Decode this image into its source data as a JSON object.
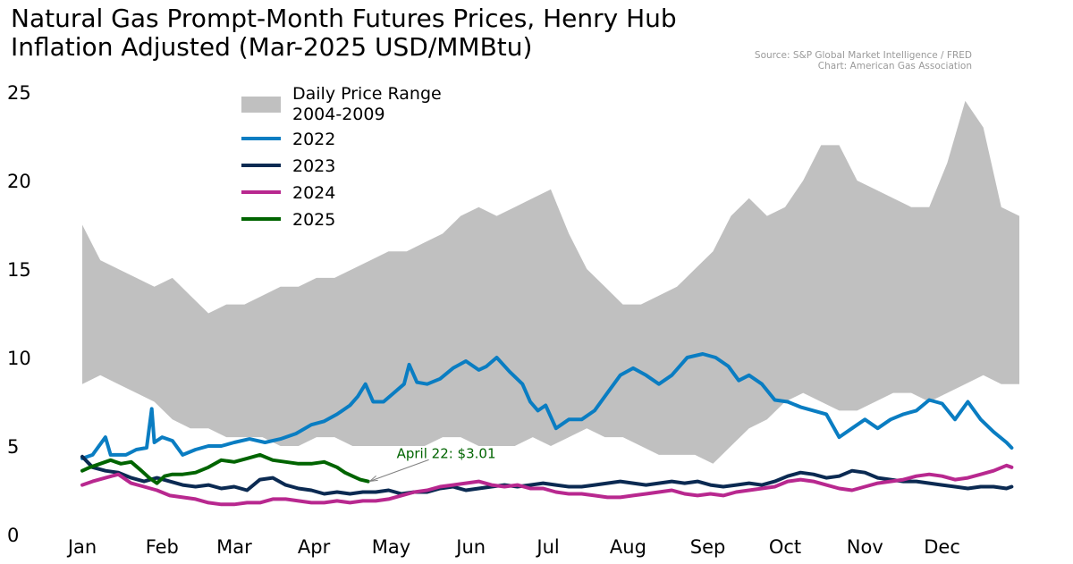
{
  "chart_data": {
    "type": "line",
    "title": [
      "Natural Gas Prompt-Month Futures Prices, Henry Hub",
      "Inflation Adjusted (Mar-2025 USD/MMBtu)"
    ],
    "source": [
      "Source: S&P Global Market Intelligence / FRED",
      "Chart: American Gas Association"
    ],
    "xlabel": "",
    "ylabel": "",
    "x_unit": "day of year",
    "xlim": [
      1,
      365
    ],
    "ylim": [
      0,
      25
    ],
    "y_ticks": [
      "0",
      "5",
      "10",
      "15",
      "20",
      "25"
    ],
    "month_ticks": [
      {
        "label": "Jan",
        "day": 1
      },
      {
        "label": "Feb",
        "day": 32
      },
      {
        "label": "Mar",
        "day": 60
      },
      {
        "label": "Apr",
        "day": 91
      },
      {
        "label": "May",
        "day": 121
      },
      {
        "label": "Jun",
        "day": 152
      },
      {
        "label": "Jul",
        "day": 182
      },
      {
        "label": "Aug",
        "day": 213
      },
      {
        "label": "Sep",
        "day": 244
      },
      {
        "label": "Oct",
        "day": 274
      },
      {
        "label": "Nov",
        "day": 305
      },
      {
        "label": "Dec",
        "day": 335
      }
    ],
    "range_band": {
      "name": "Daily Price Range 2004-2009",
      "legend_lines": [
        "Daily Price Range",
        "2004-2009"
      ],
      "color": "#c0c0c0",
      "x": [
        1,
        8,
        15,
        22,
        29,
        36,
        43,
        50,
        57,
        64,
        71,
        78,
        85,
        92,
        99,
        106,
        113,
        120,
        127,
        134,
        141,
        148,
        155,
        162,
        169,
        176,
        183,
        190,
        197,
        204,
        211,
        218,
        225,
        232,
        239,
        246,
        253,
        260,
        267,
        274,
        281,
        288,
        295,
        302,
        309,
        316,
        323,
        330,
        337,
        344,
        351,
        358,
        365
      ],
      "high": [
        17.5,
        15.5,
        15.0,
        14.5,
        14.0,
        14.5,
        13.5,
        12.5,
        13.0,
        13.0,
        13.5,
        14.0,
        14.0,
        14.5,
        14.5,
        15.0,
        15.5,
        16.0,
        16.0,
        16.5,
        17.0,
        18.0,
        18.5,
        18.0,
        18.5,
        19.0,
        19.5,
        17.0,
        15.0,
        14.0,
        13.0,
        13.0,
        13.5,
        14.0,
        15.0,
        16.0,
        18.0,
        19.0,
        18.0,
        18.5,
        20.0,
        22.0,
        22.0,
        20.0,
        19.5,
        19.0,
        18.5,
        18.5,
        21.0,
        24.5,
        23.0,
        18.5,
        18.0
      ],
      "low": [
        8.5,
        9.0,
        8.5,
        8.0,
        7.5,
        6.5,
        6.0,
        6.0,
        5.5,
        5.5,
        5.5,
        5.0,
        5.0,
        5.5,
        5.5,
        5.0,
        5.0,
        5.0,
        5.0,
        5.0,
        5.5,
        5.5,
        5.0,
        5.0,
        5.0,
        5.5,
        5.0,
        5.5,
        6.0,
        5.5,
        5.5,
        5.0,
        4.5,
        4.5,
        4.5,
        4.0,
        5.0,
        6.0,
        6.5,
        7.5,
        8.0,
        7.5,
        7.0,
        7.0,
        7.5,
        8.0,
        8.0,
        7.5,
        8.0,
        8.5,
        9.0,
        8.5,
        8.5
      ]
    },
    "series": [
      {
        "name": "2022",
        "color": "#0a7dc2",
        "x": [
          1,
          5,
          10,
          12,
          15,
          18,
          22,
          26,
          28,
          29,
          32,
          36,
          40,
          45,
          50,
          55,
          60,
          66,
          72,
          78,
          84,
          90,
          95,
          100,
          105,
          108,
          111,
          114,
          118,
          122,
          126,
          128,
          131,
          135,
          140,
          145,
          150,
          155,
          158,
          162,
          167,
          172,
          175,
          178,
          181,
          185,
          190,
          195,
          200,
          205,
          210,
          215,
          220,
          225,
          230,
          236,
          242,
          247,
          252,
          256,
          260,
          265,
          270,
          275,
          280,
          285,
          290,
          295,
          300,
          305,
          310,
          315,
          320,
          325,
          330,
          335,
          340,
          345,
          350,
          355,
          360,
          362
        ],
        "y": [
          4.3,
          4.5,
          5.5,
          4.5,
          4.5,
          4.5,
          4.8,
          4.9,
          7.1,
          5.2,
          5.5,
          5.3,
          4.5,
          4.8,
          5.0,
          5.0,
          5.2,
          5.4,
          5.2,
          5.4,
          5.7,
          6.2,
          6.4,
          6.8,
          7.3,
          7.8,
          8.5,
          7.5,
          7.5,
          8.0,
          8.5,
          9.6,
          8.6,
          8.5,
          8.8,
          9.4,
          9.8,
          9.3,
          9.5,
          10.0,
          9.2,
          8.5,
          7.5,
          7.0,
          7.3,
          6.0,
          6.5,
          6.5,
          7.0,
          8.0,
          9.0,
          9.4,
          9.0,
          8.5,
          9.0,
          10.0,
          10.2,
          10.0,
          9.5,
          8.7,
          9.0,
          8.5,
          7.6,
          7.5,
          7.2,
          7.0,
          6.8,
          5.5,
          6.0,
          6.5,
          6.0,
          6.5,
          6.8,
          7.0,
          7.6,
          7.4,
          6.5,
          7.5,
          6.5,
          5.8,
          5.2,
          4.9
        ]
      },
      {
        "name": "2023",
        "color": "#0b2a52",
        "x": [
          1,
          5,
          10,
          15,
          20,
          25,
          30,
          35,
          40,
          45,
          50,
          55,
          60,
          65,
          70,
          75,
          80,
          85,
          90,
          95,
          100,
          105,
          110,
          115,
          120,
          125,
          130,
          135,
          140,
          145,
          150,
          155,
          160,
          165,
          170,
          175,
          180,
          185,
          190,
          195,
          200,
          205,
          210,
          215,
          220,
          225,
          230,
          235,
          240,
          245,
          250,
          255,
          260,
          265,
          270,
          275,
          280,
          285,
          290,
          295,
          300,
          305,
          310,
          315,
          320,
          325,
          330,
          335,
          340,
          345,
          350,
          355,
          360,
          362
        ],
        "y": [
          4.4,
          3.8,
          3.6,
          3.5,
          3.2,
          3.0,
          3.2,
          3.0,
          2.8,
          2.7,
          2.8,
          2.6,
          2.7,
          2.5,
          3.1,
          3.2,
          2.8,
          2.6,
          2.5,
          2.3,
          2.4,
          2.3,
          2.4,
          2.4,
          2.5,
          2.3,
          2.4,
          2.4,
          2.6,
          2.7,
          2.5,
          2.6,
          2.7,
          2.8,
          2.7,
          2.8,
          2.9,
          2.8,
          2.7,
          2.7,
          2.8,
          2.9,
          3.0,
          2.9,
          2.8,
          2.9,
          3.0,
          2.9,
          3.0,
          2.8,
          2.7,
          2.8,
          2.9,
          2.8,
          3.0,
          3.3,
          3.5,
          3.4,
          3.2,
          3.3,
          3.6,
          3.5,
          3.2,
          3.1,
          3.0,
          3.0,
          2.9,
          2.8,
          2.7,
          2.6,
          2.7,
          2.7,
          2.6,
          2.7
        ]
      },
      {
        "name": "2024",
        "color": "#b8288f",
        "x": [
          1,
          5,
          10,
          15,
          20,
          25,
          30,
          35,
          40,
          45,
          50,
          55,
          60,
          65,
          70,
          75,
          80,
          85,
          90,
          95,
          100,
          105,
          110,
          115,
          120,
          125,
          130,
          135,
          140,
          145,
          150,
          155,
          160,
          165,
          170,
          175,
          180,
          185,
          190,
          195,
          200,
          205,
          210,
          215,
          220,
          225,
          230,
          235,
          240,
          245,
          250,
          255,
          260,
          265,
          270,
          275,
          280,
          285,
          290,
          295,
          300,
          305,
          310,
          315,
          320,
          325,
          330,
          335,
          340,
          345,
          350,
          355,
          360,
          362
        ],
        "y": [
          2.8,
          3.0,
          3.2,
          3.4,
          2.9,
          2.7,
          2.5,
          2.2,
          2.1,
          2.0,
          1.8,
          1.7,
          1.7,
          1.8,
          1.8,
          2.0,
          2.0,
          1.9,
          1.8,
          1.8,
          1.9,
          1.8,
          1.9,
          1.9,
          2.0,
          2.2,
          2.4,
          2.5,
          2.7,
          2.8,
          2.9,
          3.0,
          2.8,
          2.7,
          2.8,
          2.6,
          2.6,
          2.4,
          2.3,
          2.3,
          2.2,
          2.1,
          2.1,
          2.2,
          2.3,
          2.4,
          2.5,
          2.3,
          2.2,
          2.3,
          2.2,
          2.4,
          2.5,
          2.6,
          2.7,
          3.0,
          3.1,
          3.0,
          2.8,
          2.6,
          2.5,
          2.7,
          2.9,
          3.0,
          3.1,
          3.3,
          3.4,
          3.3,
          3.1,
          3.2,
          3.4,
          3.6,
          3.9,
          3.8
        ]
      },
      {
        "name": "2025",
        "color": "#006400",
        "x": [
          1,
          4,
          8,
          12,
          16,
          20,
          24,
          27,
          30,
          33,
          36,
          40,
          45,
          50,
          55,
          60,
          65,
          70,
          75,
          80,
          85,
          90,
          95,
          100,
          103,
          106,
          109,
          112
        ],
        "y": [
          3.6,
          3.8,
          4.0,
          4.2,
          4.0,
          4.1,
          3.6,
          3.2,
          2.9,
          3.3,
          3.4,
          3.4,
          3.5,
          3.8,
          4.2,
          4.1,
          4.3,
          4.5,
          4.2,
          4.1,
          4.0,
          4.0,
          4.1,
          3.8,
          3.5,
          3.3,
          3.1,
          3.0
        ]
      }
    ],
    "annotation": {
      "text": "April 22: $3.01",
      "x": 112,
      "y": 3.01,
      "color": "#006400"
    },
    "grid": false,
    "legend_placement": "top-left"
  }
}
